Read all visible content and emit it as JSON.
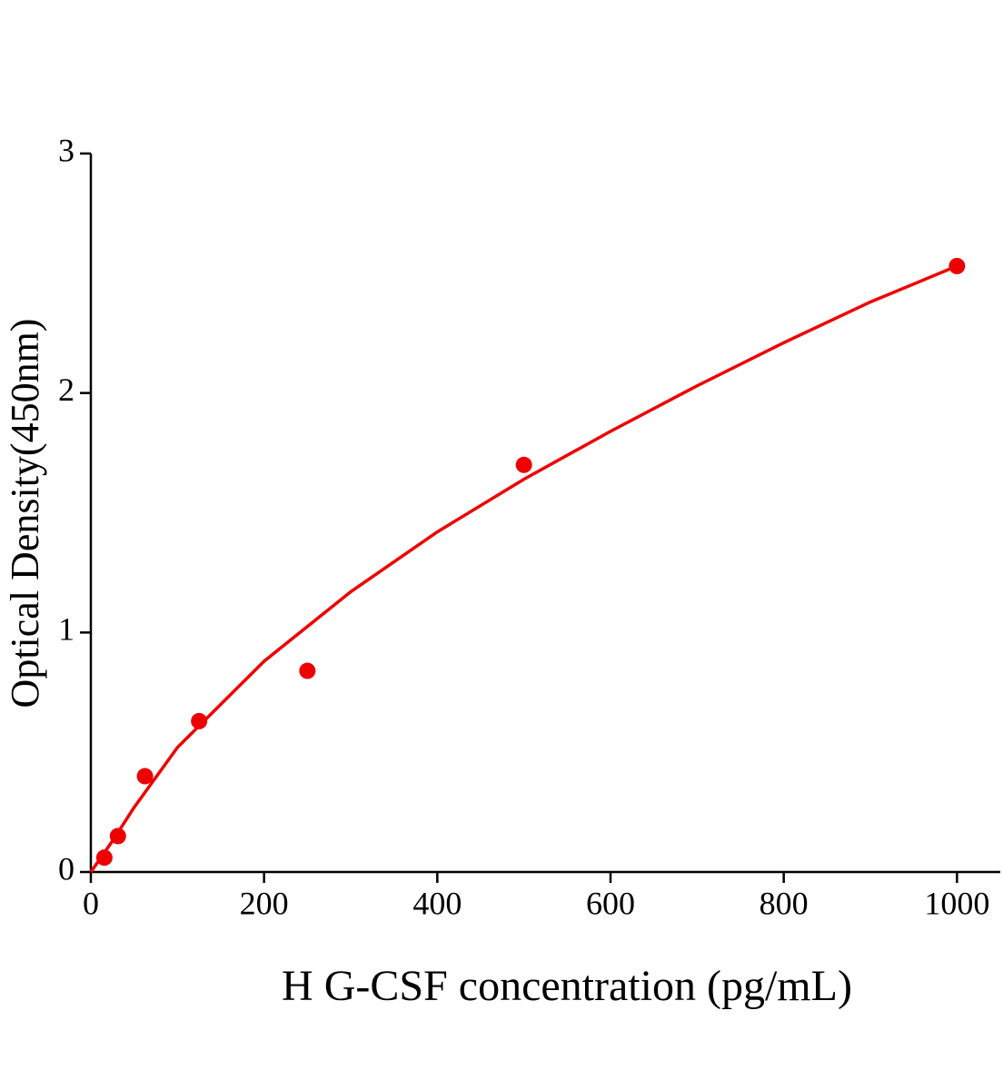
{
  "chart_data": {
    "type": "scatter",
    "x_label": "H G-CSF concentration (pg/mL)",
    "y_label": "Optical Density(450nm)",
    "xlim": [
      0,
      1050
    ],
    "xticks": [
      0,
      200,
      400,
      600,
      800,
      1000
    ],
    "ylim": [
      0,
      3
    ],
    "yticks": [
      0,
      1,
      2,
      3
    ],
    "series": [
      {
        "type": "scatter",
        "color": "#ee0000",
        "x": [
          15.6,
          31.25,
          62.5,
          125,
          250,
          500,
          1000
        ],
        "values": [
          0.06,
          0.15,
          0.4,
          0.63,
          0.84,
          1.7,
          2.53
        ]
      },
      {
        "type": "line",
        "color": "#ee0000",
        "x": [
          0,
          25,
          50,
          100,
          200,
          300,
          400,
          500,
          600,
          700,
          800,
          900,
          1000
        ],
        "values": [
          0,
          0.13,
          0.27,
          0.52,
          0.88,
          1.17,
          1.42,
          1.64,
          1.84,
          2.03,
          2.21,
          2.38,
          2.53
        ]
      }
    ]
  }
}
